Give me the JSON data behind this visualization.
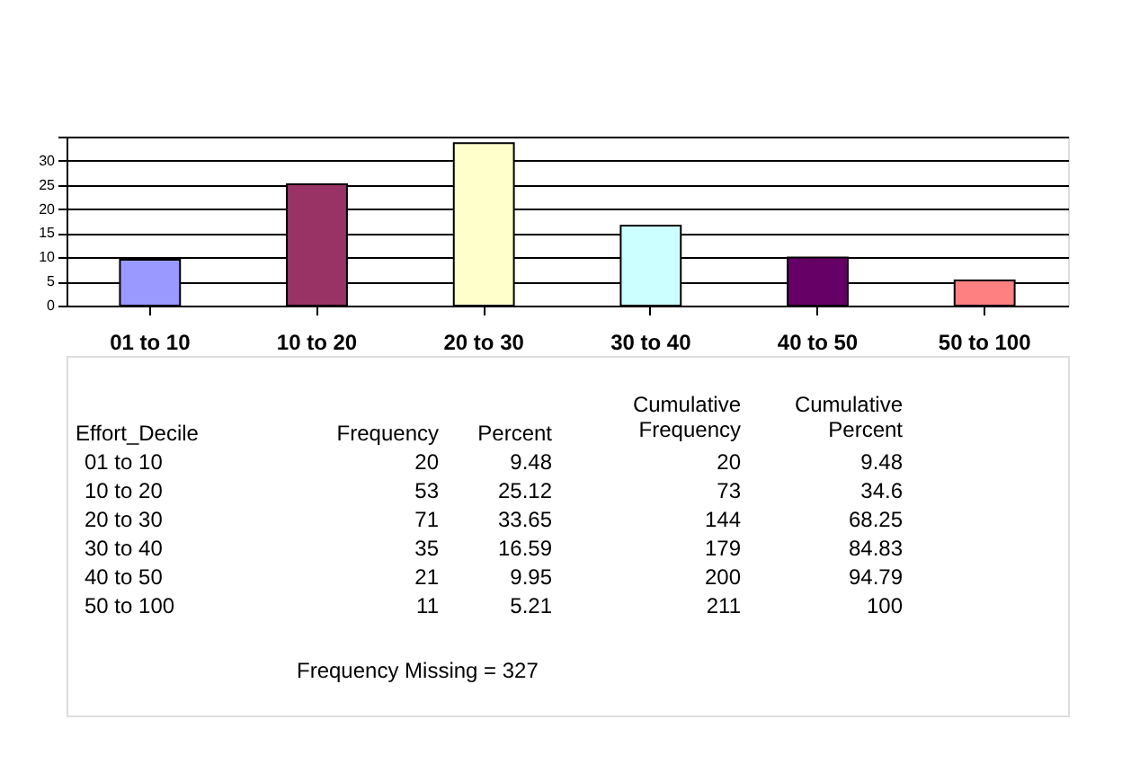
{
  "chart_data": {
    "type": "bar",
    "categories": [
      "01 to 10",
      "10 to 20",
      "20 to 30",
      "30 to 40",
      "40 to 50",
      "50 to 100"
    ],
    "values": [
      9.48,
      25.12,
      33.65,
      16.59,
      9.95,
      5.21
    ],
    "colors": [
      "#9999ff",
      "#993366",
      "#ffffcc",
      "#ccffff",
      "#660066",
      "#ff8080"
    ],
    "ylim": [
      0,
      35
    ],
    "yticks": [
      0,
      5,
      10,
      15,
      20,
      25,
      30,
      {
        "value": 35,
        "label": null
      }
    ],
    "grid": "y",
    "annotations": [
      "Effort_Decile",
      "Frequency",
      "Percent",
      "Cumulative\nFrequency",
      "Cumulative\nPercent",
      "20",
      "53",
      "71",
      "35",
      "21",
      "11",
      "9.48",
      "25.12",
      "33.65",
      "16.59",
      "9.95",
      "5.21",
      "20",
      "73",
      "144",
      "179",
      "200",
      "211",
      "9.48",
      "34.6",
      "68.25",
      "84.83",
      "94.79",
      "100",
      "Frequency Missing = 327"
    ]
  }
}
